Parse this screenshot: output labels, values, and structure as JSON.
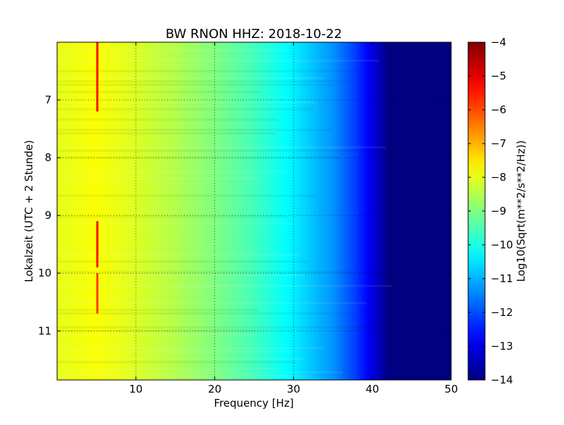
{
  "chart_data": {
    "type": "heatmap",
    "title": "BW RNON HHZ: 2018-10-22",
    "xlabel": "Frequency [Hz]",
    "ylabel": "Lokalzeit (UTC + 2 Stunde)",
    "xlim": [
      0,
      50
    ],
    "ylim": [
      11.85,
      6.0
    ],
    "y_inverted": true,
    "x_ticks": [
      10,
      20,
      30,
      40,
      50
    ],
    "y_ticks": [
      7,
      8,
      9,
      10,
      11
    ],
    "grid": true,
    "colormap": "jet",
    "colorbar": {
      "label": "Log10(Sqrt(m**2/s**2/Hz))",
      "range": [
        -14,
        -4
      ],
      "ticks": [
        -4,
        -5,
        -6,
        -7,
        -8,
        -9,
        -10,
        -11,
        -12,
        -13,
        -14
      ]
    },
    "spectrum_profile": {
      "frequency_hz": [
        0,
        5,
        10,
        15,
        20,
        25,
        30,
        35,
        38,
        40,
        42,
        50
      ],
      "log10_amplitude": [
        -8.0,
        -7.8,
        -8.1,
        -8.5,
        -9.0,
        -9.6,
        -10.4,
        -11.3,
        -12.2,
        -13.0,
        -14.0,
        -14.0
      ]
    },
    "features": [
      {
        "label": "strong narrow line",
        "frequency_hz": 5.1,
        "time_range": [
          6.0,
          7.2
        ],
        "log10_amplitude": -5.3
      },
      {
        "label": "strong narrow line",
        "frequency_hz": 5.1,
        "time_range": [
          9.1,
          9.9
        ],
        "log10_amplitude": -5.3
      },
      {
        "label": "strong narrow line",
        "frequency_hz": 5.1,
        "time_range": [
          10.0,
          10.7
        ],
        "log10_amplitude": -5.8
      }
    ]
  }
}
